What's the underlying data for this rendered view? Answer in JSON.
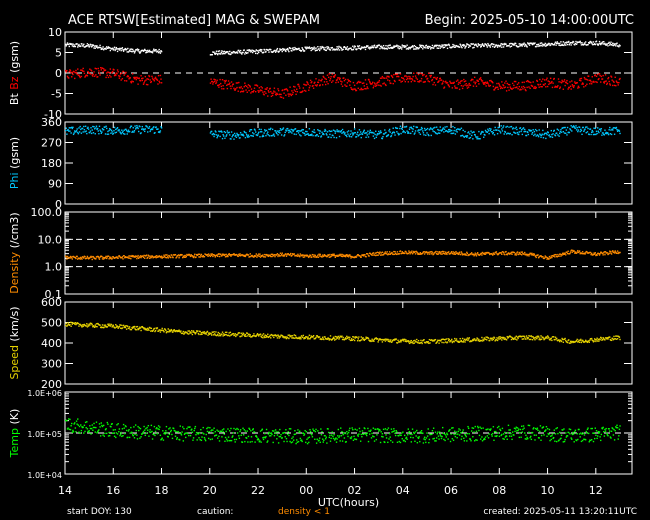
{
  "header": {
    "title": "ACE RTSW[Estimated] MAG & SWEPAM",
    "begin": "Begin: 2025-05-10 14:00:00UTC"
  },
  "footer": {
    "start_doy": "start DOY: 130",
    "caution": "caution:",
    "caution_note": "density < 1",
    "created": "created: 2025-05-11  13:20:11UTC"
  },
  "colors": {
    "background": "#000000",
    "axes": "#ffffff",
    "bt": "#ffffff",
    "bz": "#ff0000",
    "phi": "#00c8ff",
    "density": "#ff8c00",
    "speed": "#e6d200",
    "temp": "#00ff00"
  },
  "chart_data": [
    {
      "type": "scatter",
      "ylabel_parts": [
        "Bt",
        "Bz",
        "(gsm)"
      ],
      "ylim": [
        -10,
        10
      ],
      "yticks": [
        "10",
        "5",
        "0",
        "-5",
        "-10"
      ],
      "ytick_values": [
        10,
        5,
        0,
        -5,
        -10
      ],
      "dashed_lines": [
        0
      ],
      "x": [
        14,
        15,
        16,
        17,
        18,
        19,
        20,
        21,
        22,
        23,
        24,
        25,
        26,
        27,
        28,
        29,
        30,
        31,
        32,
        33,
        34,
        35,
        36,
        37
      ],
      "series": [
        {
          "name": "Bt",
          "values": [
            7,
            6.8,
            6,
            5.5,
            5.5,
            null,
            5,
            5.2,
            5.4,
            5.8,
            6,
            6.2,
            6.3,
            6.5,
            6.5,
            6.5,
            6.7,
            6.8,
            6.9,
            7,
            7.2,
            7.5,
            7.5,
            7
          ]
        },
        {
          "name": "Bz",
          "values": [
            -0.3,
            0.5,
            0,
            -1.5,
            -1.5,
            null,
            -2,
            -3,
            -4,
            -5,
            -3,
            -1,
            -3,
            -2,
            -1,
            -1,
            -3,
            -2,
            -3,
            -3,
            -2,
            -3,
            -1,
            -2
          ]
        }
      ]
    },
    {
      "type": "scatter",
      "ylabel_parts": [
        "Phi",
        "(gsm)"
      ],
      "ylim": [
        0,
        360
      ],
      "yticks": [
        "360",
        "270",
        "180",
        "90",
        "0"
      ],
      "ytick_values": [
        360,
        270,
        180,
        90,
        0
      ],
      "dashed_lines": [],
      "x": [
        14,
        15,
        16,
        17,
        18,
        19,
        20,
        21,
        22,
        23,
        24,
        25,
        26,
        27,
        28,
        29,
        30,
        31,
        32,
        33,
        34,
        35,
        36,
        37
      ],
      "series": [
        {
          "name": "Phi",
          "values": [
            320,
            330,
            325,
            330,
            330,
            null,
            310,
            305,
            315,
            320,
            320,
            310,
            315,
            305,
            330,
            320,
            330,
            300,
            330,
            320,
            305,
            330,
            320,
            325
          ]
        }
      ]
    },
    {
      "type": "scatter",
      "ylabel_parts": [
        "Density",
        "(/cm3)"
      ],
      "yscale": "log",
      "ylim": [
        0.1,
        100
      ],
      "yticks": [
        "100.0",
        "10.0",
        "1.0",
        "0.1"
      ],
      "ytick_values": [
        100,
        10,
        1,
        0.1
      ],
      "dashed_lines": [
        10,
        1
      ],
      "x": [
        14,
        15,
        16,
        17,
        18,
        19,
        20,
        21,
        22,
        23,
        24,
        25,
        26,
        27,
        28,
        29,
        30,
        31,
        32,
        33,
        34,
        35,
        36,
        37
      ],
      "series": [
        {
          "name": "Density",
          "values": [
            2.3,
            2.2,
            2.3,
            2.4,
            2.5,
            2.6,
            2.7,
            2.8,
            2.7,
            2.9,
            2.6,
            2.7,
            2.5,
            3.2,
            3.5,
            3.3,
            3.4,
            3.0,
            3.3,
            3.2,
            2.2,
            3.8,
            3.0,
            3.8
          ]
        }
      ]
    },
    {
      "type": "scatter",
      "ylabel_parts": [
        "Speed",
        "(km/s)"
      ],
      "ylim": [
        200,
        600
      ],
      "yticks": [
        "600",
        "500",
        "400",
        "300",
        "200"
      ],
      "ytick_values": [
        600,
        500,
        400,
        300,
        200
      ],
      "dashed_lines": [],
      "x": [
        14,
        15,
        16,
        17,
        18,
        19,
        20,
        21,
        22,
        23,
        24,
        25,
        26,
        27,
        28,
        29,
        30,
        31,
        32,
        33,
        34,
        35,
        36,
        37
      ],
      "series": [
        {
          "name": "Speed",
          "values": [
            495,
            490,
            485,
            475,
            465,
            455,
            450,
            445,
            440,
            435,
            432,
            428,
            425,
            418,
            412,
            410,
            415,
            420,
            425,
            430,
            428,
            410,
            420,
            430
          ]
        }
      ]
    },
    {
      "type": "scatter",
      "ylabel_parts": [
        "Temp",
        "(K)"
      ],
      "yscale": "log",
      "ylim": [
        10000,
        1000000
      ],
      "yticks": [
        "1.0E+06",
        "1.0E+05",
        "1.0E+04"
      ],
      "ytick_values": [
        1000000,
        100000,
        10000
      ],
      "dashed_lines": [
        100000
      ],
      "x": [
        14,
        15,
        16,
        17,
        18,
        19,
        20,
        21,
        22,
        23,
        24,
        25,
        26,
        27,
        28,
        29,
        30,
        31,
        32,
        33,
        34,
        35,
        36,
        37
      ],
      "series": [
        {
          "name": "Temp",
          "values": [
            170000,
            140000,
            120000,
            110000,
            105000,
            100000,
            98000,
            95000,
            90000,
            88000,
            85000,
            90000,
            95000,
            92000,
            88000,
            90000,
            95000,
            100000,
            105000,
            110000,
            100000,
            90000,
            95000,
            110000
          ]
        }
      ]
    }
  ],
  "x_axis": {
    "xlim": [
      14,
      37.5
    ],
    "tick_values": [
      14,
      16,
      18,
      20,
      22,
      24,
      26,
      28,
      30,
      32,
      34,
      36
    ],
    "tick_labels": [
      "14",
      "16",
      "18",
      "20",
      "22",
      "00",
      "02",
      "04",
      "06",
      "08",
      "10",
      "12"
    ],
    "label": "UTC(hours)"
  }
}
